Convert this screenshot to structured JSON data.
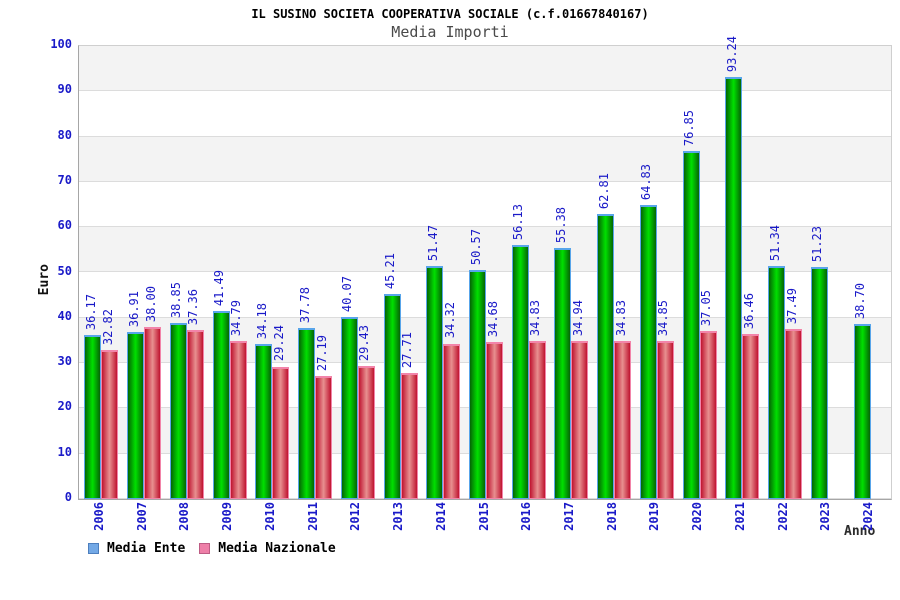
{
  "chart_data": {
    "type": "bar",
    "title": "IL SUSINO SOCIETA COOPERATIVA SOCIALE (c.f.01667840167)",
    "subtitle": "Media Importi",
    "xlabel": "Anno",
    "ylabel": "Euro",
    "ylim": [
      0,
      100
    ],
    "ytick_step": 10,
    "grid": "horizontal-bands",
    "legend_position": "bottom-left",
    "categories": [
      "2006",
      "2007",
      "2008",
      "2009",
      "2010",
      "2011",
      "2012",
      "2013",
      "2014",
      "2015",
      "2016",
      "2017",
      "2018",
      "2019",
      "2020",
      "2021",
      "2022",
      "2023",
      "2024"
    ],
    "series": [
      {
        "name": "Media Ente",
        "legend_color": "#73a9e6",
        "legend_border": "#4d7fbe",
        "bar_edge_color": "#056605",
        "bar_center_color": "#00e000",
        "bar_border_color": "#58a5ea",
        "values": [
          36.17,
          36.91,
          38.85,
          41.49,
          34.18,
          37.78,
          40.07,
          45.21,
          51.47,
          50.57,
          56.13,
          55.38,
          62.81,
          64.83,
          76.85,
          93.24,
          51.34,
          51.23,
          38.7
        ]
      },
      {
        "name": "Media Nazionale",
        "legend_color": "#ee7fa8",
        "legend_border": "#bd5c84",
        "bar_edge_color": "#bf1430",
        "bar_center_color": "#e89090",
        "bar_border_color": "#f284a9",
        "values": [
          32.82,
          38.0,
          37.36,
          34.79,
          29.24,
          27.19,
          29.43,
          27.71,
          34.32,
          34.68,
          34.83,
          34.94,
          34.83,
          34.85,
          37.05,
          36.46,
          37.49,
          null,
          null
        ]
      }
    ],
    "style": {
      "stripe_color": "#f3f3f3",
      "stripe_alt_color": "#ffffff",
      "grid_line_color": "#dcdcdc",
      "tick_label_color": "#1a1ac8",
      "value_label_color": "#1a1ac8"
    }
  }
}
